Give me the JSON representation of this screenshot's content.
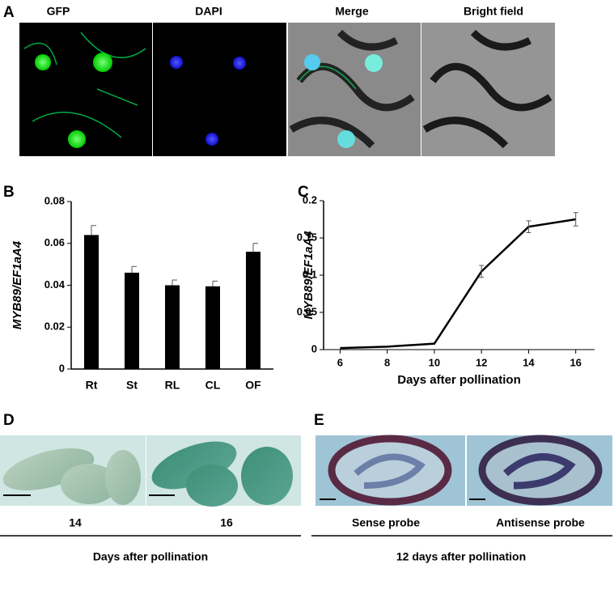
{
  "panel_labels": [
    "A",
    "B",
    "C",
    "D",
    "E"
  ],
  "panel_a": {
    "titles": [
      "GFP",
      "DAPI",
      "Merge",
      "Bright field"
    ]
  },
  "chart_data": [
    {
      "type": "bar",
      "ylabel": "MYB89/EF1aA4",
      "categories": [
        "Rt",
        "St",
        "RL",
        "CL",
        "OF"
      ],
      "values": [
        0.064,
        0.046,
        0.04,
        0.0395,
        0.056
      ],
      "errors": [
        0.0045,
        0.003,
        0.0025,
        0.0025,
        0.004
      ],
      "color": "#000000",
      "ylim": [
        0,
        0.08
      ],
      "yticks": [
        0,
        0.02,
        0.04,
        0.06,
        0.08
      ]
    },
    {
      "type": "line",
      "ylabel": "MYB89/EF1aA4",
      "xlabel": "Days after pollination",
      "x": [
        6,
        8,
        10,
        12,
        14,
        16
      ],
      "values": [
        0.002,
        0.004,
        0.008,
        0.105,
        0.165,
        0.175
      ],
      "errors": [
        0,
        0,
        0,
        0.008,
        0.008,
        0.009
      ],
      "color": "#000000",
      "xlim": [
        5.3,
        16.8
      ],
      "xticks": [
        6,
        8,
        10,
        12,
        14,
        16
      ],
      "ylim": [
        0,
        0.2
      ],
      "yticks": [
        0,
        0.05,
        0.1,
        0.15,
        0.2
      ]
    }
  ],
  "panel_d": {
    "labels": [
      "14",
      "16"
    ],
    "caption": "Days after pollination"
  },
  "panel_e": {
    "labels": [
      "Sense probe",
      "Antisense probe"
    ],
    "caption": "12 days after pollination"
  }
}
